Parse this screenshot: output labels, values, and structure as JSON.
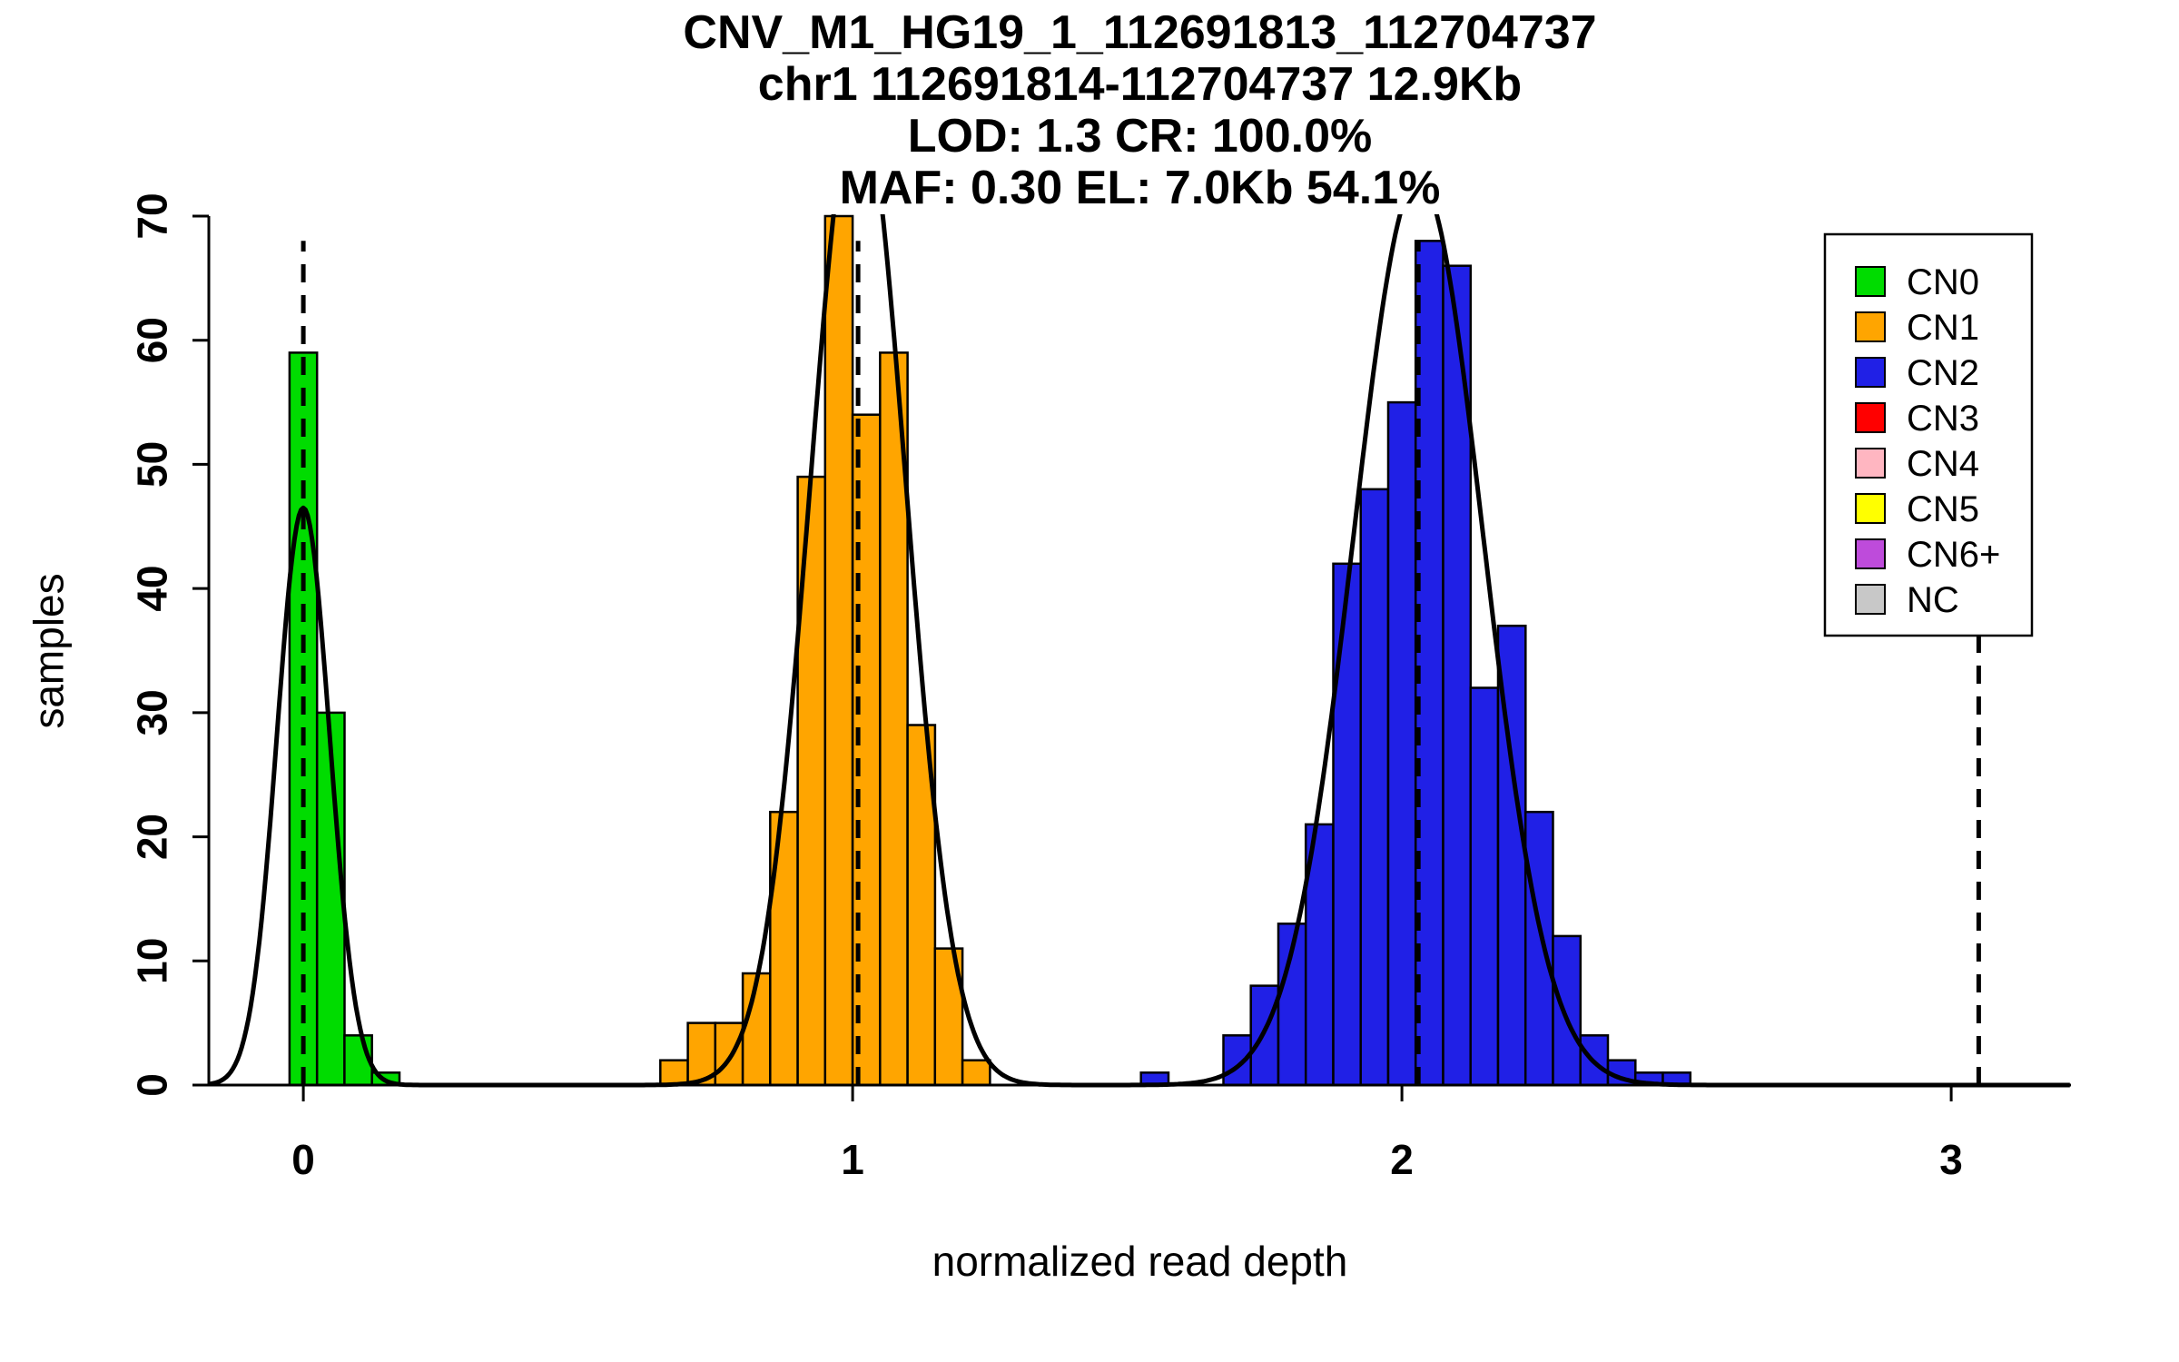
{
  "chart_data": {
    "type": "bar",
    "subtype": "histogram-with-gaussian-fits",
    "title_lines": [
      "CNV_M1_HG19_1_112691813_112704737",
      "chr1 112691814-112704737 12.9Kb",
      "LOD: 1.3 CR: 100.0%",
      "MAF: 0.30 EL: 7.0Kb 54.1%"
    ],
    "xlabel": "normalized read depth",
    "ylabel": "samples",
    "xlim": [
      -0.172,
      3.218
    ],
    "ylim": [
      0,
      70
    ],
    "x_ticks": [
      0,
      1,
      2,
      3
    ],
    "y_ticks": [
      0,
      10,
      20,
      30,
      40,
      50,
      60,
      70
    ],
    "grid": false,
    "bin_width": 0.05,
    "series": [
      {
        "name": "CN0",
        "color": "#00DC00",
        "bin_start": -0.025,
        "counts": [
          59,
          30,
          4,
          1
        ]
      },
      {
        "name": "CN1",
        "color": "#FFA500",
        "bin_start": 0.65,
        "counts": [
          2,
          5,
          5,
          9,
          22,
          49,
          70,
          54,
          59,
          29,
          11,
          2
        ]
      },
      {
        "name": "CN2",
        "color": "#2020E6",
        "bin_start": 1.525,
        "counts": [
          1,
          0,
          0,
          4,
          8,
          13,
          21,
          42,
          48,
          55,
          68,
          66,
          32,
          37,
          22,
          12,
          4,
          2,
          1,
          1
        ]
      }
    ],
    "fit_curves": [
      {
        "name": "CN0",
        "mean": 0.0,
        "sd": 0.048,
        "peak": 46.5
      },
      {
        "name": "CN1",
        "mean": 1.01,
        "sd": 0.087,
        "peak": 80
      },
      {
        "name": "CN2",
        "mean": 2.03,
        "sd": 0.118,
        "peak": 73
      }
    ],
    "dashed_lines_x": [
      0.0,
      1.01,
      2.03,
      3.05
    ],
    "legend": {
      "position": "top-right",
      "entries": [
        {
          "label": "CN0",
          "color": "#00DC00"
        },
        {
          "label": "CN1",
          "color": "#FFA500"
        },
        {
          "label": "CN2",
          "color": "#2020E6"
        },
        {
          "label": "CN3",
          "color": "#FF0000"
        },
        {
          "label": "CN4",
          "color": "#FFB6C1"
        },
        {
          "label": "CN5",
          "color": "#FFFF00"
        },
        {
          "label": "CN6+",
          "color": "#BE4BDB"
        },
        {
          "label": "NC",
          "color": "#C8C8C8"
        }
      ]
    }
  }
}
